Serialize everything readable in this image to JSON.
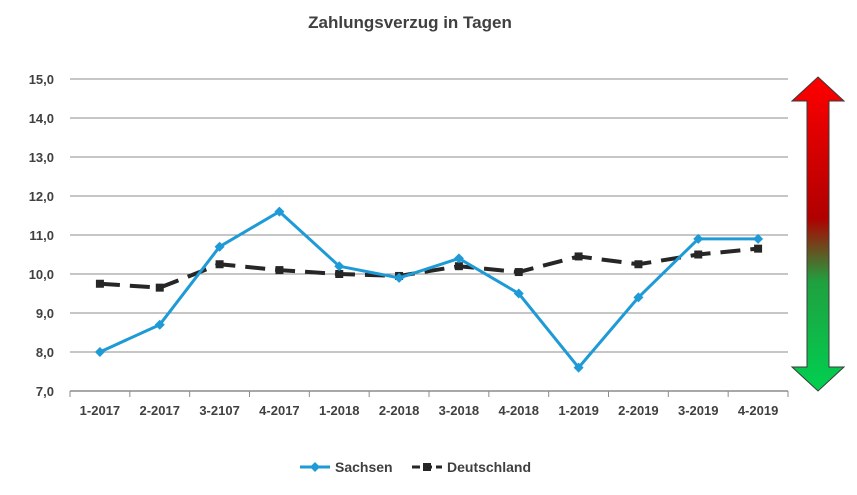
{
  "chart_data": {
    "type": "line",
    "title": "Zahlungsverzug in Tagen",
    "categories": [
      "1-2017",
      "2-2017",
      "3-2107",
      "4-2017",
      "1-2018",
      "2-2018",
      "3-2018",
      "4-2018",
      "1-2019",
      "2-2019",
      "3-2019",
      "4-2019"
    ],
    "ylim": [
      7.0,
      15.0
    ],
    "y_ticks": [
      "7,0",
      "8,0",
      "9,0",
      "10,0",
      "11,0",
      "12,0",
      "13,0",
      "14,0",
      "15,0"
    ],
    "grid": true,
    "legend_position": "bottom",
    "series": [
      {
        "name": "Sachsen",
        "color": "#1e9ad6",
        "style": "solid",
        "marker": "diamond",
        "values": [
          8.0,
          8.7,
          10.7,
          11.6,
          10.2,
          9.9,
          10.4,
          9.5,
          7.6,
          9.4,
          10.9,
          10.9
        ]
      },
      {
        "name": "Deutschland",
        "color": "#262626",
        "style": "dashed",
        "marker": "square",
        "values": [
          9.75,
          9.65,
          10.25,
          10.1,
          10.0,
          9.95,
          10.2,
          10.05,
          10.45,
          10.25,
          10.5,
          10.65
        ]
      }
    ],
    "annotations": [
      {
        "kind": "double-arrow",
        "gradient_top": "#ff0000",
        "gradient_mid": "#b00000",
        "gradient_bottom": "#00d050"
      }
    ]
  }
}
